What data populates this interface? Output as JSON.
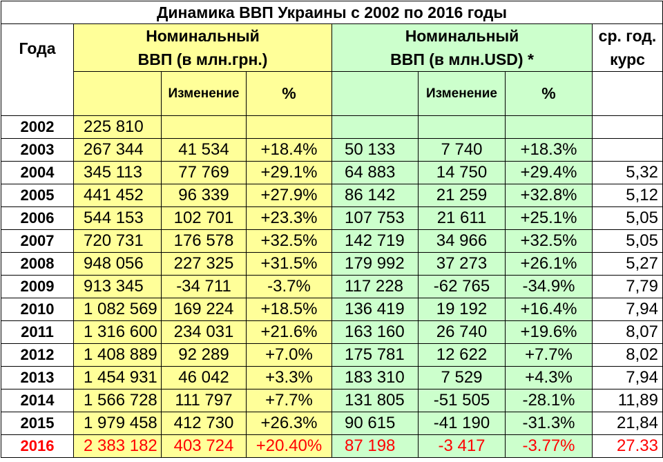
{
  "title": "Динамика ВВП Украины с 2002 по 2016 годы",
  "headers": {
    "year": "Года",
    "uah_line1": "Номинальный",
    "uah_line2": "ВВП (в млн.грн.)",
    "usd_line1": "Номинальный",
    "usd_line2": "ВВП (в млн.USD) *",
    "rate_line1": "ср. год.",
    "rate_line2": "курс",
    "change": "Изменение",
    "percent": "%"
  },
  "colors": {
    "uah_bg": "#ffff99",
    "usd_bg": "#ccffcc",
    "highlight_text": "#ff0000"
  },
  "rows": [
    {
      "year": "2002",
      "uah": "225 810",
      "uah_change": "",
      "uah_pct": "",
      "usd": "",
      "usd_change": "",
      "usd_pct": "",
      "rate": ""
    },
    {
      "year": "2003",
      "uah": "267 344",
      "uah_change": "41 534",
      "uah_pct": "+18.4%",
      "usd": "50 133",
      "usd_change": "7 740",
      "usd_pct": "+18.3%",
      "rate": ""
    },
    {
      "year": "2004",
      "uah": "345 113",
      "uah_change": "77 769",
      "uah_pct": "+29.1%",
      "usd": "64 883",
      "usd_change": "14 750",
      "usd_pct": "+29.4%",
      "rate": "5,32"
    },
    {
      "year": "2005",
      "uah": "441 452",
      "uah_change": "96 339",
      "uah_pct": "+27.9%",
      "usd": "86 142",
      "usd_change": "21 259",
      "usd_pct": "+32.8%",
      "rate": "5,12"
    },
    {
      "year": "2006",
      "uah": "544 153",
      "uah_change": "102 701",
      "uah_pct": "+23.3%",
      "usd": "107 753",
      "usd_change": "21 611",
      "usd_pct": "+25.1%",
      "rate": "5,05"
    },
    {
      "year": "2007",
      "uah": "720 731",
      "uah_change": "176 578",
      "uah_pct": "+32.5%",
      "usd": "142 719",
      "usd_change": "34 966",
      "usd_pct": "+32.5%",
      "rate": "5,05"
    },
    {
      "year": "2008",
      "uah": "948 056",
      "uah_change": "227 325",
      "uah_pct": "+31.5%",
      "usd": "179 992",
      "usd_change": "37 273",
      "usd_pct": "+26.1%",
      "rate": "5,27"
    },
    {
      "year": "2009",
      "uah": "913 345",
      "uah_change": "-34 711",
      "uah_pct": "-3.7%",
      "usd": "117 228",
      "usd_change": "-62 765",
      "usd_pct": "-34.9%",
      "rate": "7,79"
    },
    {
      "year": "2010",
      "uah": "1 082 569",
      "uah_change": "169 224",
      "uah_pct": "+18.5%",
      "usd": "136 419",
      "usd_change": "19 192",
      "usd_pct": "+16.4%",
      "rate": "7,94"
    },
    {
      "year": "2011",
      "uah": "1 316 600",
      "uah_change": "234 031",
      "uah_pct": "+21.6%",
      "usd": "163 160",
      "usd_change": "26 740",
      "usd_pct": "+19.6%",
      "rate": "8,07"
    },
    {
      "year": "2012",
      "uah": "1 408 889",
      "uah_change": "92 289",
      "uah_pct": "+7.0%",
      "usd": "175 781",
      "usd_change": "12 622",
      "usd_pct": "+7.7%",
      "rate": "8,02"
    },
    {
      "year": "2013",
      "uah": "1 454 931",
      "uah_change": "46 042",
      "uah_pct": "+3.3%",
      "usd": "183 310",
      "usd_change": "7 529",
      "usd_pct": "+4.3%",
      "rate": "7,94"
    },
    {
      "year": "2014",
      "uah": "1 566 728",
      "uah_change": "111 797",
      "uah_pct": "+7.7%",
      "usd": "131 805",
      "usd_change": "-51 505",
      "usd_pct": "-28.1%",
      "rate": "11,89"
    },
    {
      "year": "2015",
      "uah": "1 979 458",
      "uah_change": "412 730",
      "uah_pct": "+26.3%",
      "usd": "90 615",
      "usd_change": "-41 190",
      "usd_pct": "-31.3%",
      "rate": "21,84"
    },
    {
      "year": "2016",
      "uah": "2 383 182",
      "uah_change": "403 724",
      "uah_pct": "+20.40%",
      "usd": "87 198",
      "usd_change": "-3 417",
      "usd_pct": "-3.77%",
      "rate": "27.33",
      "highlight": true
    }
  ]
}
